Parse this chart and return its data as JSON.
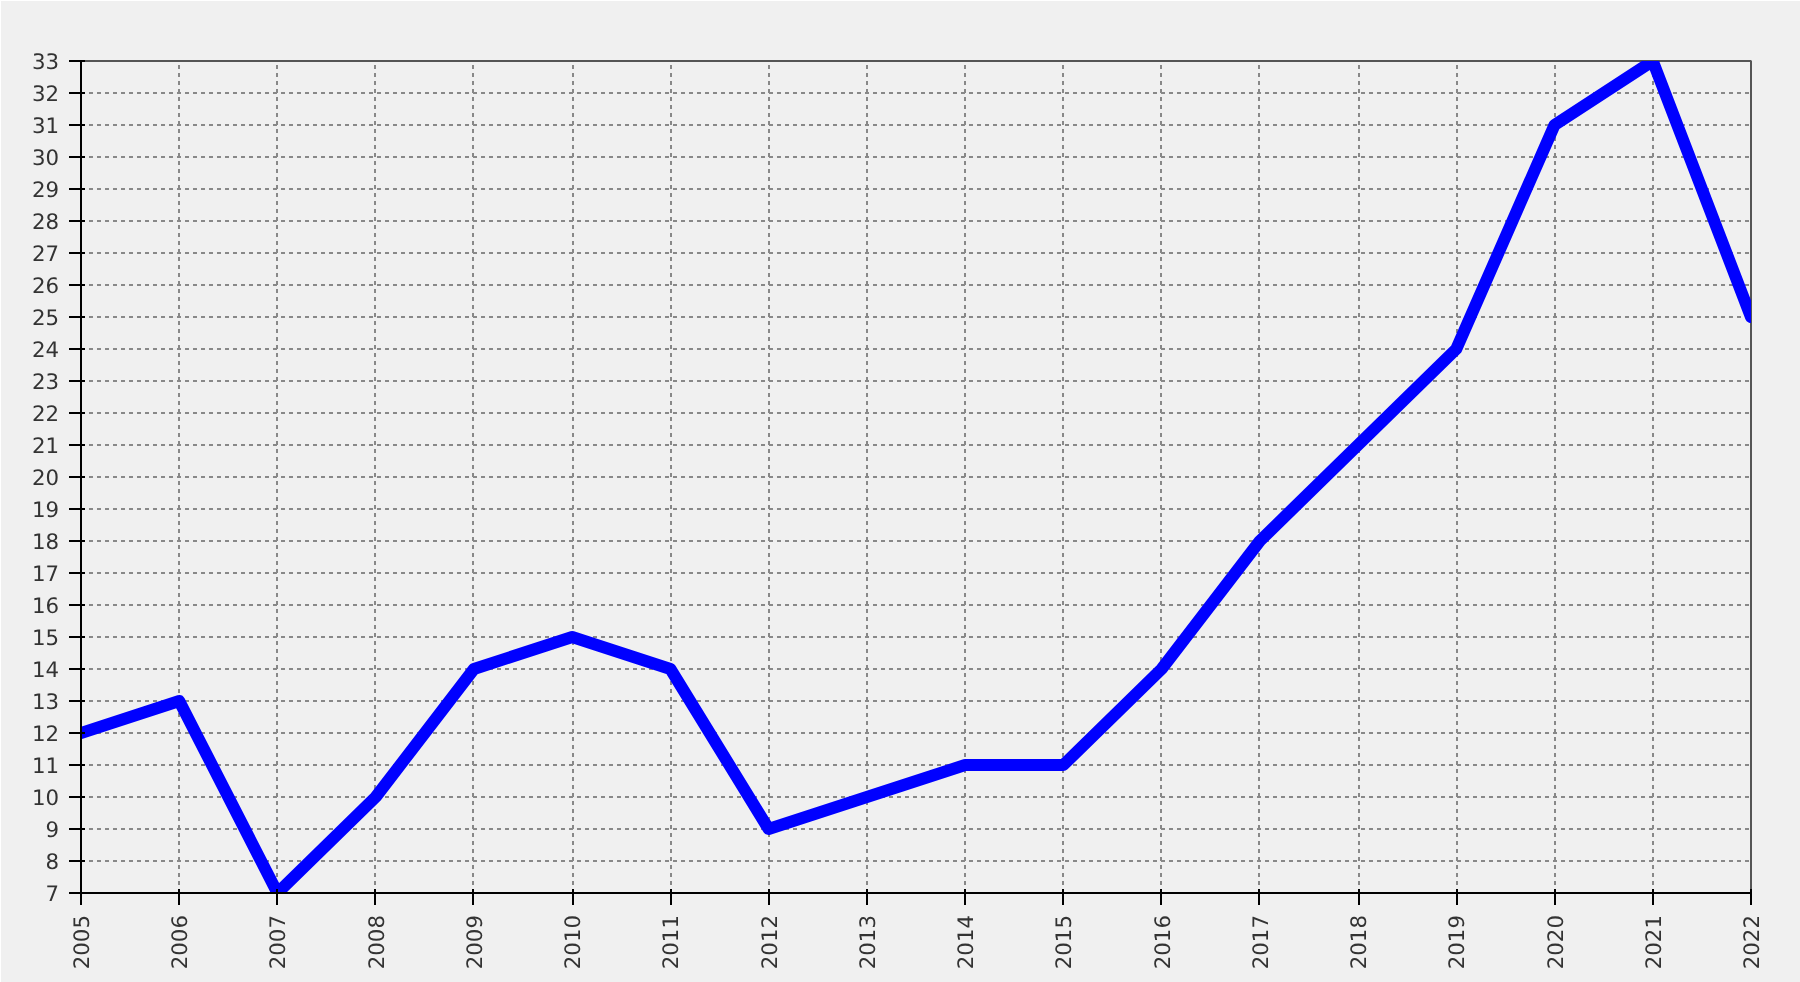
{
  "chart_data": {
    "type": "line",
    "categories": [
      "2005",
      "2006",
      "2007",
      "2008",
      "2009",
      "2010",
      "2011",
      "2012",
      "2013",
      "2014",
      "2015",
      "2016",
      "2017",
      "2018",
      "2019",
      "2020",
      "2021",
      "2022"
    ],
    "series": [
      {
        "color": "#0000ff",
        "values": [
          12,
          13,
          7,
          10,
          14,
          15,
          14,
          9,
          10,
          11,
          11,
          14,
          18,
          21,
          24,
          31,
          33,
          25
        ]
      }
    ],
    "ylim": [
      7,
      33
    ],
    "yticks": [
      7,
      8,
      9,
      10,
      11,
      12,
      13,
      14,
      15,
      16,
      17,
      18,
      19,
      20,
      21,
      22,
      23,
      24,
      25,
      26,
      27,
      28,
      29,
      30,
      31,
      32,
      33
    ],
    "grid": true,
    "marker": "none",
    "line_style": "solid"
  }
}
